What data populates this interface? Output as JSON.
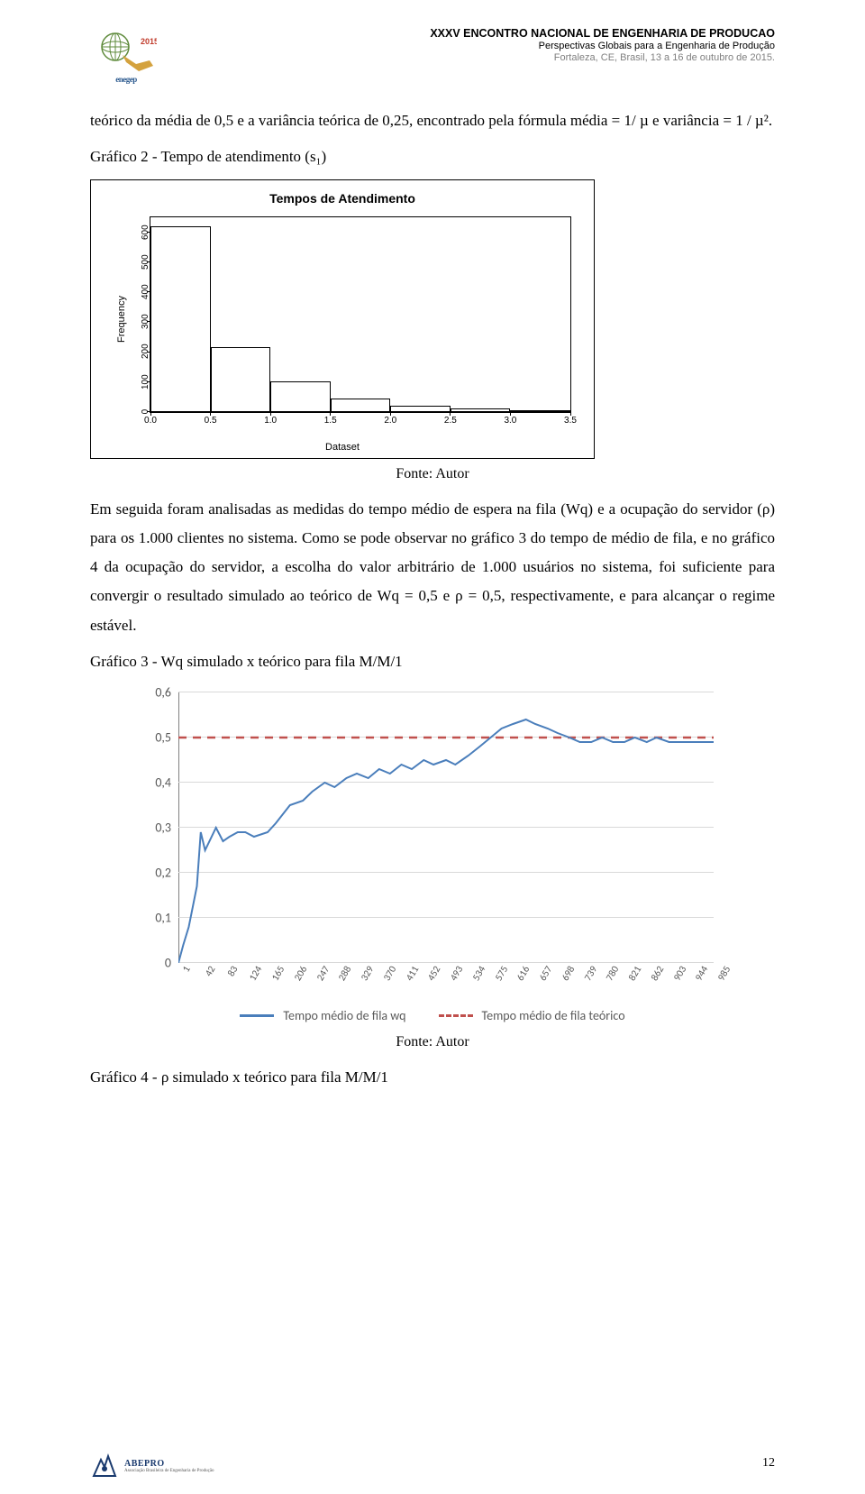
{
  "header": {
    "line1": "XXXV ENCONTRO NACIONAL DE ENGENHARIA DE PRODUCAO",
    "line2": "Perspectivas Globais para a Engenharia de Produção",
    "line3": "Fortaleza, CE, Brasil, 13 a 16 de outubro de 2015.",
    "logo_year": "2015",
    "logo_name": "enegep"
  },
  "body": {
    "p1": "teórico da média de 0,5 e a variância teórica de 0,25, encontrado pela fórmula média = 1/ µ e variância = 1 / µ².",
    "p2": "Gráfico 2 - Tempo de atendimento (s₁)",
    "caption_autor": "Fonte: Autor",
    "p3": "Em seguida foram analisadas as medidas do tempo médio de espera na fila (Wq) e a ocupação do servidor (ρ) para os 1.000 clientes no sistema. Como se pode observar no gráfico 3 do tempo de médio de fila, e no gráfico 4 da ocupação do servidor, a escolha do valor arbitrário de 1.000 usuários no sistema, foi suficiente para convergir o resultado simulado ao teórico de Wq = 0,5 e ρ = 0,5, respectivamente, e para alcançar o regime estável.",
    "p4": "Gráfico 3 - Wq simulado x teórico para fila M/M/1",
    "p5": "Gráfico 4 - ρ simulado x teórico para fila M/M/1"
  },
  "chart1": {
    "type": "histogram",
    "title": "Tempos de Atendimento",
    "ylabel": "Frequency",
    "xlabel": "Dataset",
    "xlim": [
      0,
      3.5
    ],
    "ylim": [
      0,
      650
    ],
    "xticks": [
      "0.0",
      "0.5",
      "1.0",
      "1.5",
      "2.0",
      "2.5",
      "3.0",
      "3.5"
    ],
    "yticks": [
      "0",
      "100",
      "200",
      "300",
      "400",
      "500",
      "600"
    ],
    "bin_edges": [
      0.0,
      0.5,
      1.0,
      1.5,
      2.0,
      2.5,
      3.0,
      3.5
    ],
    "counts": [
      620,
      215,
      100,
      45,
      20,
      10,
      3
    ],
    "bar_fill": "#ffffff",
    "bar_border": "#000000",
    "background_color": "#ffffff"
  },
  "chart2": {
    "type": "line",
    "ylim": [
      0,
      0.6
    ],
    "yticks": [
      "0",
      "0,1",
      "0,2",
      "0,3",
      "0,4",
      "0,5",
      "0,6"
    ],
    "xticks": [
      "1",
      "42",
      "83",
      "124",
      "165",
      "206",
      "247",
      "288",
      "329",
      "370",
      "411",
      "452",
      "493",
      "534",
      "575",
      "616",
      "657",
      "698",
      "739",
      "780",
      "821",
      "862",
      "903",
      "944",
      "985"
    ],
    "x_range": [
      1,
      985
    ],
    "series_sim_color": "#4a7ebb",
    "series_teo_color": "#c0504d",
    "grid_color": "#d9d9d9",
    "axis_color": "#808080",
    "tick_font_color": "#595959",
    "legend": {
      "sim": "Tempo médio de fila wq",
      "teo": "Tempo médio de fila teórico"
    },
    "teorico_value": 0.5,
    "simulado": [
      [
        1,
        0.0
      ],
      [
        10,
        0.04
      ],
      [
        20,
        0.08
      ],
      [
        35,
        0.17
      ],
      [
        42,
        0.29
      ],
      [
        50,
        0.25
      ],
      [
        70,
        0.3
      ],
      [
        83,
        0.27
      ],
      [
        95,
        0.28
      ],
      [
        110,
        0.29
      ],
      [
        124,
        0.29
      ],
      [
        140,
        0.28
      ],
      [
        165,
        0.29
      ],
      [
        180,
        0.31
      ],
      [
        206,
        0.35
      ],
      [
        230,
        0.36
      ],
      [
        247,
        0.38
      ],
      [
        270,
        0.4
      ],
      [
        288,
        0.39
      ],
      [
        310,
        0.41
      ],
      [
        329,
        0.42
      ],
      [
        350,
        0.41
      ],
      [
        370,
        0.43
      ],
      [
        390,
        0.42
      ],
      [
        411,
        0.44
      ],
      [
        430,
        0.43
      ],
      [
        452,
        0.45
      ],
      [
        470,
        0.44
      ],
      [
        493,
        0.45
      ],
      [
        510,
        0.44
      ],
      [
        534,
        0.46
      ],
      [
        555,
        0.48
      ],
      [
        575,
        0.5
      ],
      [
        595,
        0.52
      ],
      [
        616,
        0.53
      ],
      [
        640,
        0.54
      ],
      [
        657,
        0.53
      ],
      [
        680,
        0.52
      ],
      [
        698,
        0.51
      ],
      [
        720,
        0.5
      ],
      [
        739,
        0.49
      ],
      [
        760,
        0.49
      ],
      [
        780,
        0.5
      ],
      [
        800,
        0.49
      ],
      [
        821,
        0.49
      ],
      [
        840,
        0.5
      ],
      [
        862,
        0.49
      ],
      [
        880,
        0.5
      ],
      [
        903,
        0.49
      ],
      [
        925,
        0.49
      ],
      [
        944,
        0.49
      ],
      [
        965,
        0.49
      ],
      [
        985,
        0.49
      ]
    ]
  },
  "footer": {
    "page_num": "12",
    "footer_brand": "ABEPRO",
    "footer_brand_sub": "Associação Brasileira de Engenharia de Produção"
  }
}
